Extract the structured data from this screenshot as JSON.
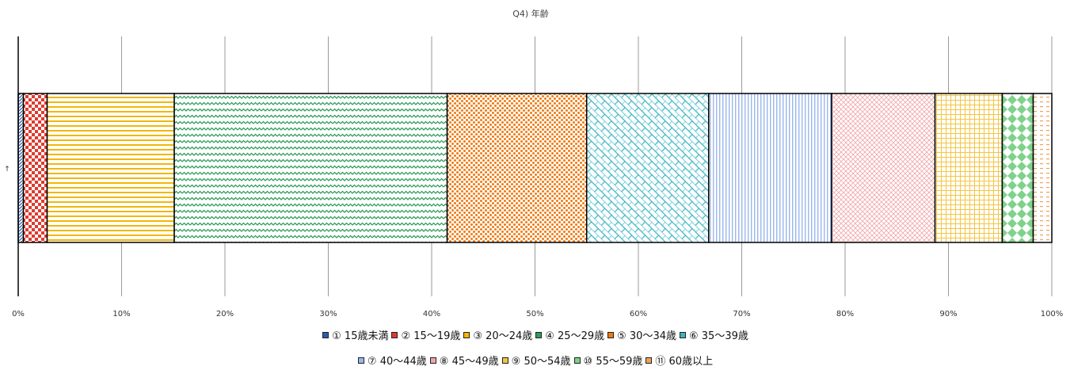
{
  "chart_data": {
    "type": "bar",
    "subtype": "stacked-100-horizontal",
    "title": "Q4) 年齢",
    "ylabel": "",
    "xlabel": "",
    "category_label": "↑",
    "xlim": [
      0,
      100
    ],
    "ticks": [
      "0%",
      "10%",
      "20%",
      "30%",
      "40%",
      "50%",
      "60%",
      "70%",
      "80%",
      "90%",
      "100%"
    ],
    "grid": true,
    "legend_position": "bottom",
    "series": [
      {
        "name": "① 15歳未満",
        "value": 0.5,
        "color": "#2a5db0",
        "pattern": "diagonal"
      },
      {
        "name": "② 15～19歳",
        "value": 2.3,
        "color": "#e03a2f",
        "pattern": "checker"
      },
      {
        "name": "③ 20～24歳",
        "value": 12.3,
        "color": "#f2b705",
        "pattern": "hlines"
      },
      {
        "name": "④ 25～29歳",
        "value": 26.4,
        "color": "#2e9e5b",
        "pattern": "wave"
      },
      {
        "name": "⑤ 30～34歳",
        "value": 13.5,
        "color": "#ef7a12",
        "pattern": "dots"
      },
      {
        "name": "⑥ 35～39歳",
        "value": 11.8,
        "color": "#3bb5c2",
        "pattern": "diag-brick"
      },
      {
        "name": "⑦ 40～44歳",
        "value": 11.9,
        "color": "#9bb7ec",
        "pattern": "vlines"
      },
      {
        "name": "⑧ 45～49歳",
        "value": 10.0,
        "color": "#f2a6a8",
        "pattern": "crosshatch"
      },
      {
        "name": "⑨ 50～54歳",
        "value": 6.5,
        "color": "#f4c542",
        "pattern": "grid"
      },
      {
        "name": "⑩ 55～59歳",
        "value": 3.0,
        "color": "#7fd28c",
        "pattern": "diamond"
      },
      {
        "name": "⑪ 60歳以上",
        "value": 1.8,
        "color": "#f0a25a",
        "pattern": "dash"
      }
    ]
  }
}
